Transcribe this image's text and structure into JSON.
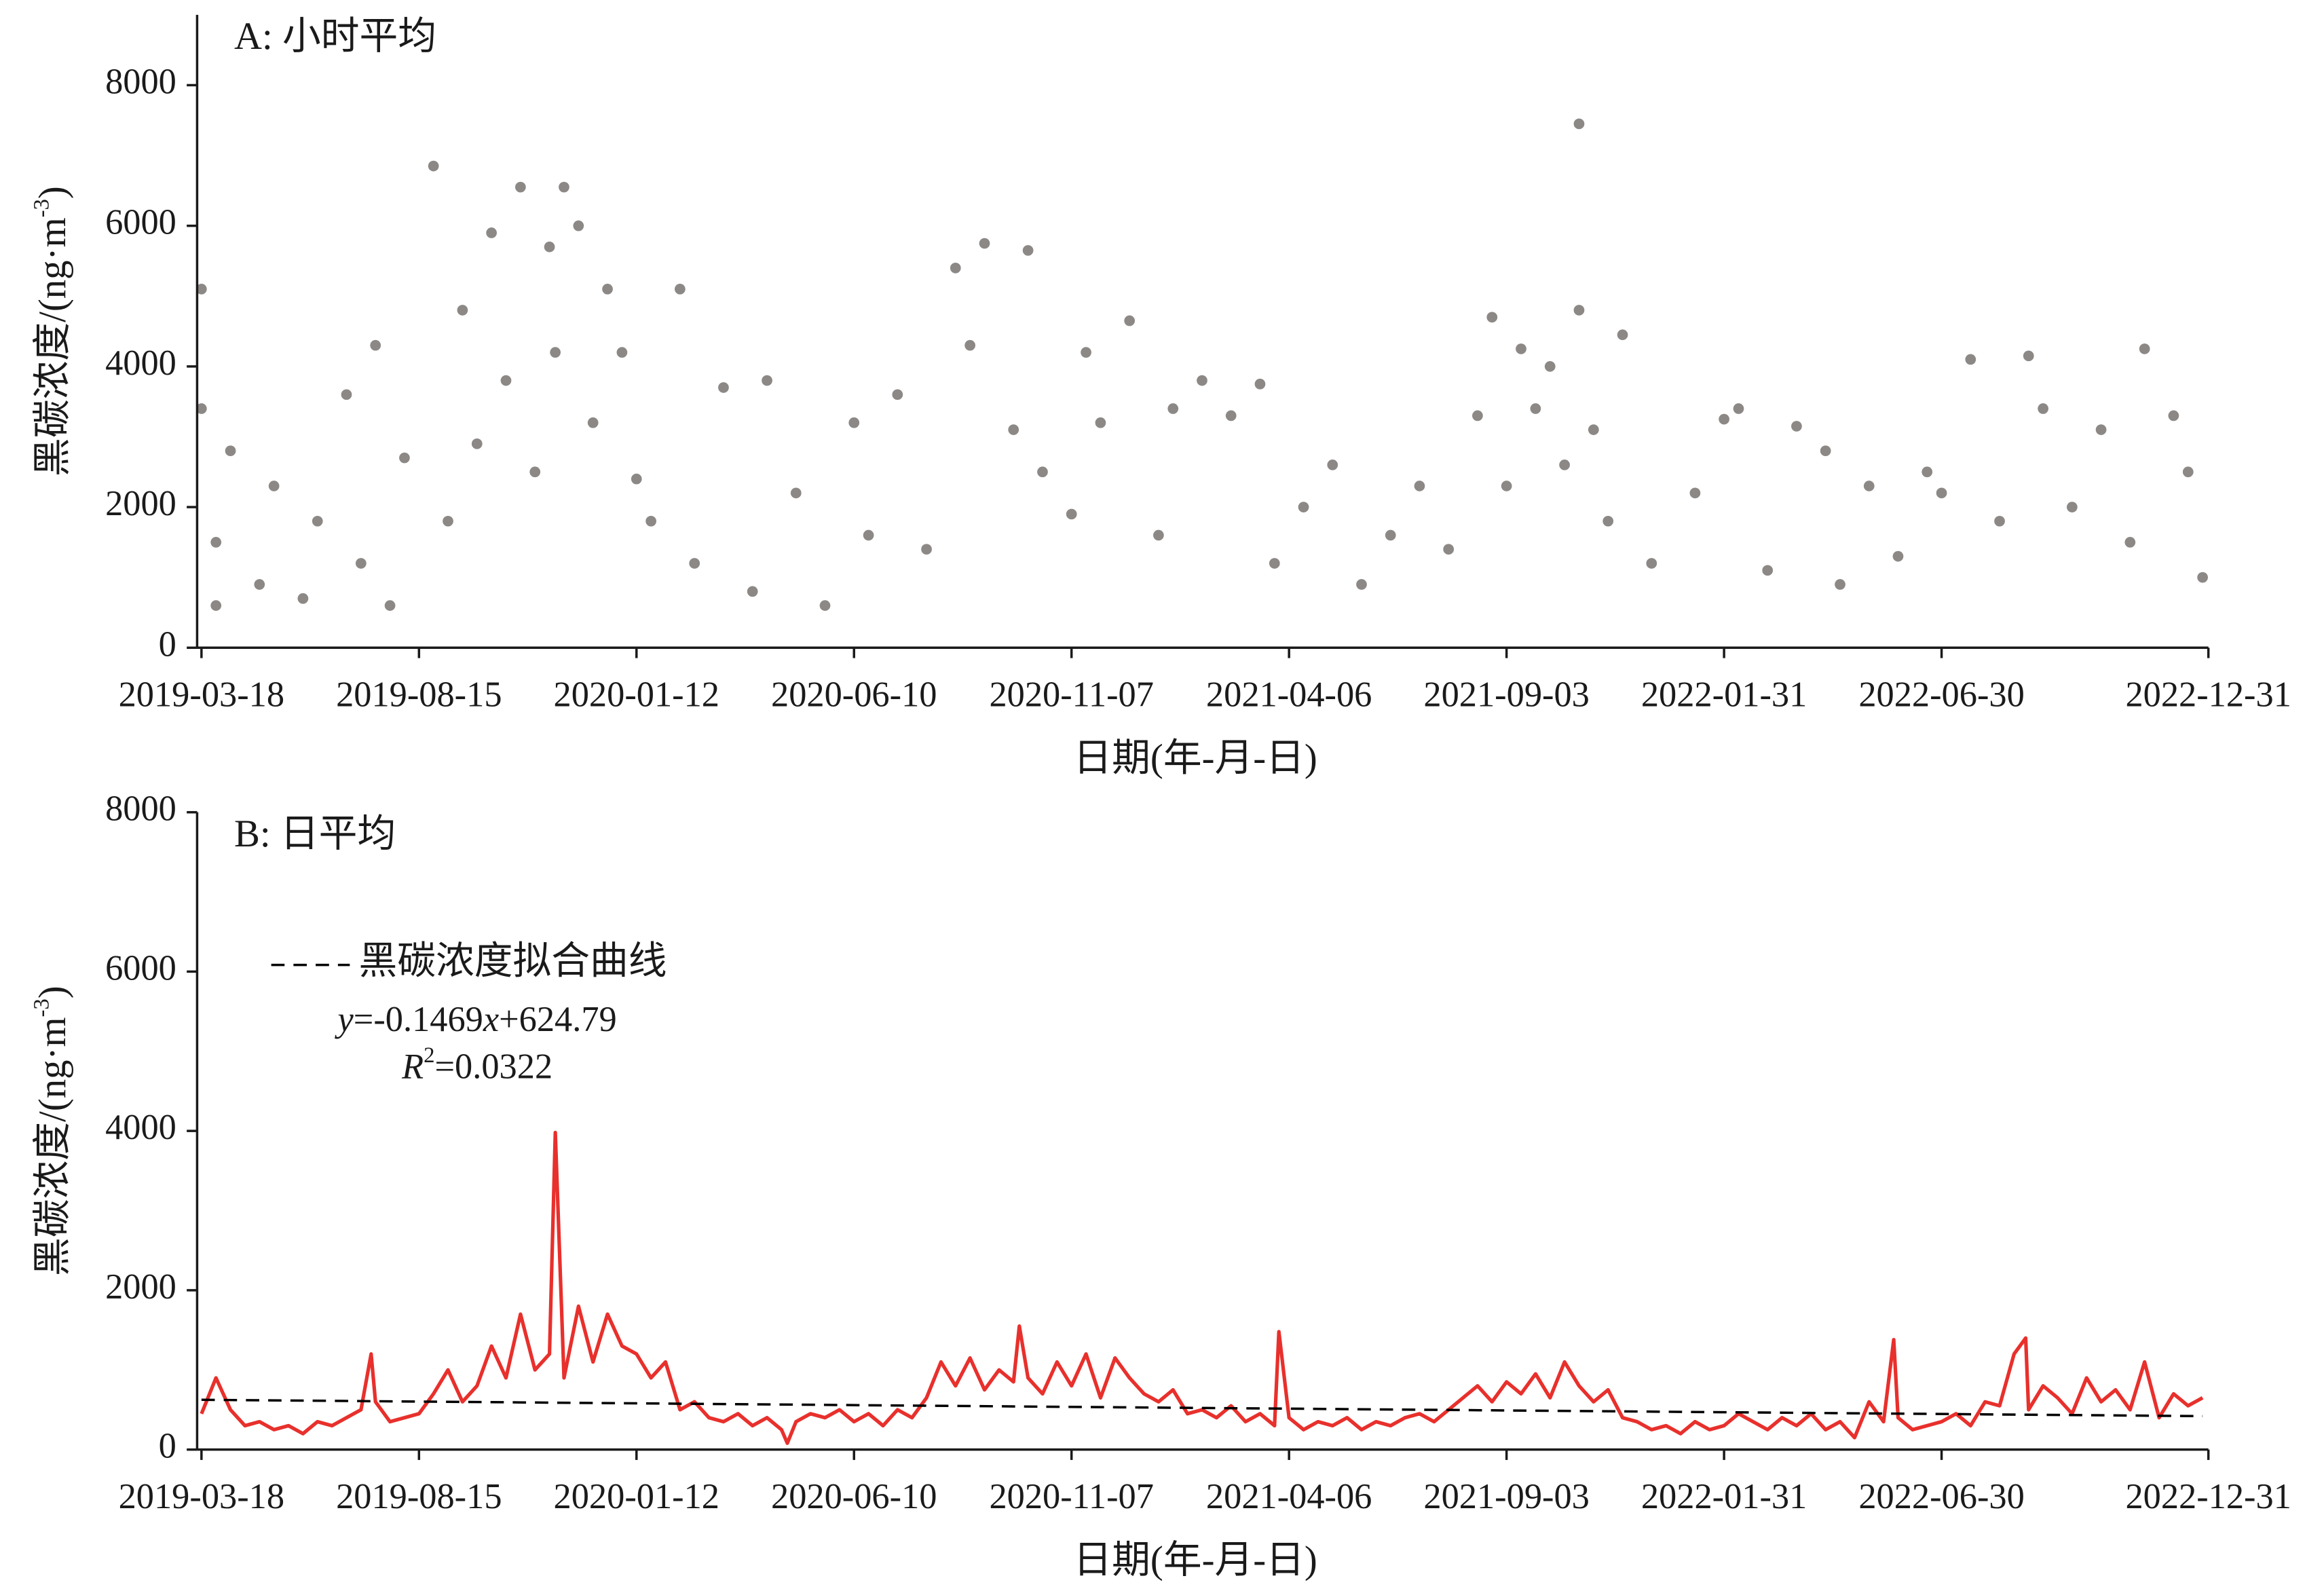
{
  "chart_data": [
    {
      "type": "scatter",
      "title": "A: 小时平均",
      "xlabel": "日期(年-月-日)",
      "ylabel": [
        "黑碳浓度/(ng·m",
        "-3",
        ")"
      ],
      "color": "#8c8886",
      "xlim": [
        "2019-03-15",
        "2022-12-31"
      ],
      "xticks": [
        "2019-03-18",
        "2019-08-15",
        "2020-01-12",
        "2020-06-10",
        "2020-11-07",
        "2021-04-06",
        "2021-09-03",
        "2022-01-31",
        "2022-06-30",
        "2022-12-31"
      ],
      "ylim": [
        0,
        9000
      ],
      "yticks": [
        0,
        2000,
        4000,
        6000,
        8000
      ],
      "x": [
        "2019-03-18",
        "2019-03-18",
        "2019-03-28",
        "2019-03-28",
        "2019-04-07",
        "2019-04-27",
        "2019-05-07",
        "2019-05-27",
        "2019-06-06",
        "2019-06-26",
        "2019-07-06",
        "2019-07-16",
        "2019-07-26",
        "2019-08-05",
        "2019-08-25",
        "2019-09-04",
        "2019-09-14",
        "2019-09-24",
        "2019-10-04",
        "2019-10-14",
        "2019-10-24",
        "2019-11-03",
        "2019-11-13",
        "2019-11-17",
        "2019-11-23",
        "2019-12-03",
        "2019-12-13",
        "2019-12-23",
        "2020-01-02",
        "2020-01-12",
        "2020-01-22",
        "2020-02-11",
        "2020-02-21",
        "2020-03-12",
        "2020-04-01",
        "2020-04-11",
        "2020-05-01",
        "2020-05-21",
        "2020-06-10",
        "2020-06-20",
        "2020-07-10",
        "2020-07-30",
        "2020-08-19",
        "2020-08-29",
        "2020-09-08",
        "2020-09-28",
        "2020-10-08",
        "2020-10-18",
        "2020-11-07",
        "2020-11-17",
        "2020-11-27",
        "2020-12-17",
        "2021-01-06",
        "2021-01-16",
        "2021-02-05",
        "2021-02-25",
        "2021-03-17",
        "2021-03-27",
        "2021-04-16",
        "2021-05-06",
        "2021-05-26",
        "2021-06-15",
        "2021-07-05",
        "2021-07-25",
        "2021-08-14",
        "2021-08-24",
        "2021-09-03",
        "2021-09-13",
        "2021-09-23",
        "2021-10-03",
        "2021-10-13",
        "2021-10-23",
        "2021-10-23",
        "2021-11-02",
        "2021-11-12",
        "2021-11-22",
        "2021-12-12",
        "2022-01-11",
        "2022-01-31",
        "2022-02-10",
        "2022-03-02",
        "2022-03-22",
        "2022-04-11",
        "2022-04-21",
        "2022-05-11",
        "2022-05-31",
        "2022-06-20",
        "2022-06-30",
        "2022-07-20",
        "2022-08-09",
        "2022-08-29",
        "2022-09-08",
        "2022-09-28",
        "2022-10-18",
        "2022-11-07",
        "2022-11-17",
        "2022-12-07",
        "2022-12-17",
        "2022-12-27"
      ],
      "values": [
        5100,
        3400,
        1500,
        600,
        2800,
        900,
        2300,
        700,
        1800,
        3600,
        1200,
        4300,
        600,
        2700,
        6850,
        1800,
        4800,
        2900,
        5900,
        3800,
        6550,
        2500,
        5700,
        4200,
        6550,
        6000,
        3200,
        5100,
        4200,
        2400,
        1800,
        5100,
        1200,
        3700,
        800,
        3800,
        2200,
        600,
        3200,
        1600,
        3600,
        1400,
        5400,
        4300,
        5750,
        3100,
        5650,
        2500,
        1900,
        4200,
        3200,
        4650,
        1600,
        3400,
        3800,
        3300,
        3750,
        1200,
        2000,
        2600,
        900,
        1600,
        2300,
        1400,
        3300,
        4700,
        2300,
        4250,
        3400,
        4000,
        2600,
        7450,
        4800,
        3100,
        1800,
        4450,
        1200,
        2200,
        3250,
        3400,
        1100,
        3150,
        2800,
        900,
        2300,
        1300,
        2500,
        2200,
        4100,
        1800,
        4150,
        3400,
        2000,
        3100,
        1500,
        4250,
        3300,
        2500,
        1000
      ]
    },
    {
      "type": "line",
      "title": "B: 日平均",
      "xlabel": "日期(年-月-日)",
      "ylabel": [
        "黑碳浓度/(ng·m",
        "-3",
        ")"
      ],
      "color": "#e8302c",
      "xlim": [
        "2019-03-15",
        "2022-12-31"
      ],
      "xticks": [
        "2019-03-18",
        "2019-08-15",
        "2020-01-12",
        "2020-06-10",
        "2020-11-07",
        "2021-04-06",
        "2021-09-03",
        "2022-01-31",
        "2022-06-30",
        "2022-12-31"
      ],
      "ylim": [
        0,
        8000
      ],
      "yticks": [
        0,
        2000,
        4000,
        6000,
        8000
      ],
      "x": [
        "2019-03-18",
        "2019-03-28",
        "2019-04-07",
        "2019-04-17",
        "2019-04-27",
        "2019-05-07",
        "2019-05-17",
        "2019-05-27",
        "2019-06-06",
        "2019-06-16",
        "2019-06-26",
        "2019-07-06",
        "2019-07-13",
        "2019-07-16",
        "2019-07-26",
        "2019-08-05",
        "2019-08-15",
        "2019-08-25",
        "2019-09-04",
        "2019-09-14",
        "2019-09-24",
        "2019-10-04",
        "2019-10-14",
        "2019-10-24",
        "2019-11-03",
        "2019-11-13",
        "2019-11-17",
        "2019-11-23",
        "2019-12-03",
        "2019-12-13",
        "2019-12-23",
        "2020-01-02",
        "2020-01-12",
        "2020-01-22",
        "2020-02-01",
        "2020-02-11",
        "2020-02-21",
        "2020-03-02",
        "2020-03-12",
        "2020-03-22",
        "2020-04-01",
        "2020-04-11",
        "2020-04-21",
        "2020-04-25",
        "2020-05-01",
        "2020-05-11",
        "2020-05-21",
        "2020-05-31",
        "2020-06-10",
        "2020-06-20",
        "2020-06-30",
        "2020-07-10",
        "2020-07-20",
        "2020-07-30",
        "2020-08-09",
        "2020-08-19",
        "2020-08-29",
        "2020-09-08",
        "2020-09-18",
        "2020-09-28",
        "2020-10-02",
        "2020-10-08",
        "2020-10-18",
        "2020-10-28",
        "2020-11-07",
        "2020-11-17",
        "2020-11-27",
        "2020-12-07",
        "2020-12-17",
        "2020-12-27",
        "2021-01-06",
        "2021-01-16",
        "2021-01-26",
        "2021-02-05",
        "2021-02-15",
        "2021-02-25",
        "2021-03-07",
        "2021-03-17",
        "2021-03-27",
        "2021-03-30",
        "2021-04-06",
        "2021-04-16",
        "2021-04-26",
        "2021-05-06",
        "2021-05-16",
        "2021-05-26",
        "2021-06-05",
        "2021-06-15",
        "2021-06-25",
        "2021-07-05",
        "2021-07-15",
        "2021-07-25",
        "2021-08-04",
        "2021-08-14",
        "2021-08-24",
        "2021-09-03",
        "2021-09-13",
        "2021-09-23",
        "2021-10-03",
        "2021-10-13",
        "2021-10-23",
        "2021-11-02",
        "2021-11-12",
        "2021-11-22",
        "2021-12-02",
        "2021-12-12",
        "2021-12-22",
        "2022-01-01",
        "2022-01-11",
        "2022-01-21",
        "2022-01-31",
        "2022-02-10",
        "2022-02-20",
        "2022-03-02",
        "2022-03-12",
        "2022-03-22",
        "2022-04-01",
        "2022-04-11",
        "2022-04-21",
        "2022-05-01",
        "2022-05-11",
        "2022-05-21",
        "2022-05-28",
        "2022-05-31",
        "2022-06-10",
        "2022-06-20",
        "2022-06-30",
        "2022-07-10",
        "2022-07-20",
        "2022-07-30",
        "2022-08-09",
        "2022-08-19",
        "2022-08-27",
        "2022-08-29",
        "2022-09-08",
        "2022-09-18",
        "2022-09-28",
        "2022-10-08",
        "2022-10-18",
        "2022-10-28",
        "2022-11-07",
        "2022-11-17",
        "2022-11-27",
        "2022-12-07",
        "2022-12-17",
        "2022-12-27"
      ],
      "values": [
        450,
        900,
        500,
        300,
        350,
        250,
        300,
        200,
        350,
        300,
        400,
        500,
        1200,
        600,
        350,
        400,
        450,
        700,
        1000,
        600,
        800,
        1300,
        900,
        1700,
        1000,
        1200,
        3980,
        900,
        1800,
        1100,
        1700,
        1300,
        1200,
        900,
        1100,
        500,
        600,
        400,
        350,
        450,
        300,
        400,
        250,
        80,
        350,
        450,
        400,
        500,
        350,
        450,
        300,
        500,
        400,
        650,
        1100,
        800,
        1150,
        750,
        1000,
        850,
        1550,
        900,
        700,
        1100,
        800,
        1200,
        650,
        1150,
        900,
        700,
        600,
        750,
        450,
        500,
        400,
        550,
        350,
        450,
        300,
        1480,
        400,
        250,
        350,
        300,
        400,
        250,
        350,
        300,
        400,
        450,
        350,
        500,
        650,
        800,
        600,
        850,
        700,
        950,
        650,
        1100,
        800,
        600,
        750,
        400,
        350,
        250,
        300,
        200,
        350,
        250,
        300,
        450,
        350,
        250,
        400,
        300,
        450,
        250,
        350,
        150,
        600,
        350,
        1380,
        400,
        250,
        300,
        350,
        450,
        300,
        600,
        550,
        1200,
        1400,
        500,
        800,
        650,
        450,
        900,
        600,
        750,
        500,
        1100,
        400,
        700,
        550,
        650
      ],
      "fit": {
        "name": "黑碳浓度拟合曲线",
        "color": "#000000",
        "x": [
          "2019-03-18",
          "2022-12-27"
        ],
        "values": [
          625,
          420
        ]
      },
      "equation": [
        "y",
        "=-0.1469",
        "x",
        "+624.79"
      ],
      "r2": [
        "R",
        "2",
        "=0.0322"
      ]
    }
  ]
}
